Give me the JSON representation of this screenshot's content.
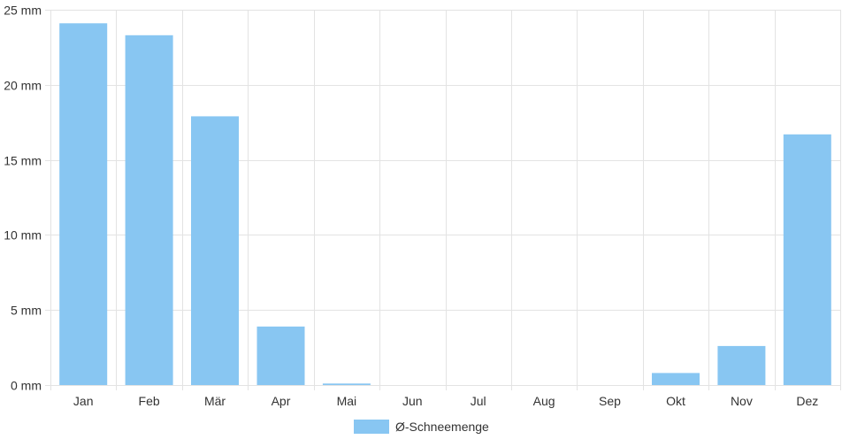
{
  "chart_data": {
    "type": "bar",
    "categories": [
      "Jan",
      "Feb",
      "Mär",
      "Apr",
      "Mai",
      "Jun",
      "Jul",
      "Aug",
      "Sep",
      "Okt",
      "Nov",
      "Dez"
    ],
    "series": [
      {
        "name": "Ø-Schneemenge",
        "values": [
          24.1,
          23.3,
          17.9,
          3.9,
          0.1,
          0,
          0,
          0,
          0,
          0.8,
          2.6,
          16.7
        ]
      }
    ],
    "ylim": [
      0,
      25
    ],
    "yticks": [
      "0 mm",
      "5 mm",
      "10 mm",
      "15 mm",
      "20 mm",
      "25 mm"
    ],
    "ytick_values": [
      0,
      5,
      10,
      15,
      20,
      25
    ],
    "grid": true,
    "legend": "bottom-center",
    "bar_color": "#88c6f2",
    "grid_color": "#e3e3e3"
  }
}
